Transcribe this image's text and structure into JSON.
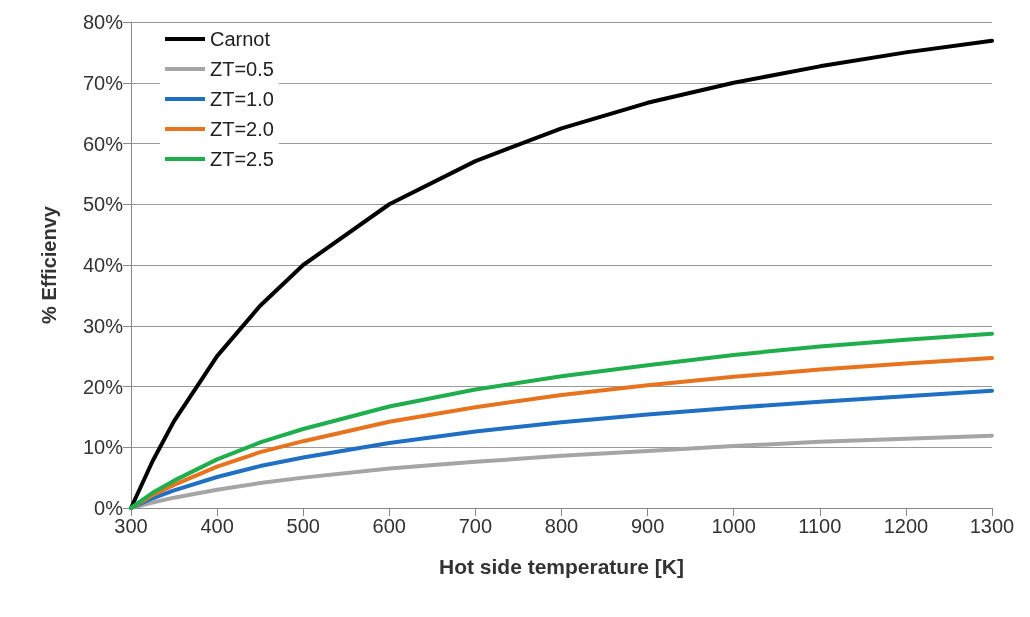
{
  "chart_data": {
    "type": "line",
    "xlabel": "Hot side temperature [K]",
    "ylabel": "% Efficienvy",
    "x": [
      300,
      325,
      350,
      400,
      450,
      500,
      600,
      700,
      800,
      900,
      1000,
      1100,
      1200,
      1300
    ],
    "series": [
      {
        "name": "Carnot",
        "color": "#000000",
        "values": [
          0,
          7.7,
          14.3,
          25,
          33.3,
          40,
          50,
          57.1,
          62.5,
          66.7,
          70,
          72.7,
          75,
          76.9
        ]
      },
      {
        "name": "ZT=0.5",
        "color": "#a5a5a5",
        "values": [
          0,
          0.9,
          1.7,
          3,
          4.1,
          5,
          6.5,
          7.6,
          8.6,
          9.4,
          10.2,
          10.9,
          11.4,
          11.9
        ]
      },
      {
        "name": "ZT=1.0",
        "color": "#1f6fc5",
        "values": [
          0,
          1.6,
          2.9,
          5.1,
          6.9,
          8.3,
          10.7,
          12.6,
          14.1,
          15.4,
          16.5,
          17.5,
          18.4,
          19.3
        ]
      },
      {
        "name": "ZT=2.0",
        "color": "#e8731e",
        "values": [
          0,
          2.1,
          3.8,
          6.8,
          9.2,
          11,
          14.2,
          16.6,
          18.6,
          20.2,
          21.6,
          22.8,
          23.8,
          24.7
        ]
      },
      {
        "name": "ZT=2.5",
        "color": "#1fae4b",
        "values": [
          0,
          2.5,
          4.5,
          8,
          10.8,
          13,
          16.7,
          19.5,
          21.7,
          23.5,
          25.2,
          26.6,
          27.7,
          28.7
        ]
      }
    ],
    "xlim": [
      300,
      1300
    ],
    "xticks": [
      300,
      400,
      500,
      600,
      700,
      800,
      900,
      1000,
      1100,
      1200,
      1300
    ],
    "ylim": [
      0,
      80
    ],
    "yticks": [
      {
        "value": 0,
        "label": "0%"
      },
      {
        "value": 10,
        "label": "10%"
      },
      {
        "value": 20,
        "label": "20%"
      },
      {
        "value": 30,
        "label": "30%"
      },
      {
        "value": 40,
        "label": "40%"
      },
      {
        "value": 50,
        "label": "50%"
      },
      {
        "value": 60,
        "label": "60%"
      },
      {
        "value": 70,
        "label": "70%"
      },
      {
        "value": 80,
        "label": "80%"
      }
    ],
    "grid": "y",
    "legend": "top left",
    "marker": "none",
    "line_style": "solid"
  }
}
